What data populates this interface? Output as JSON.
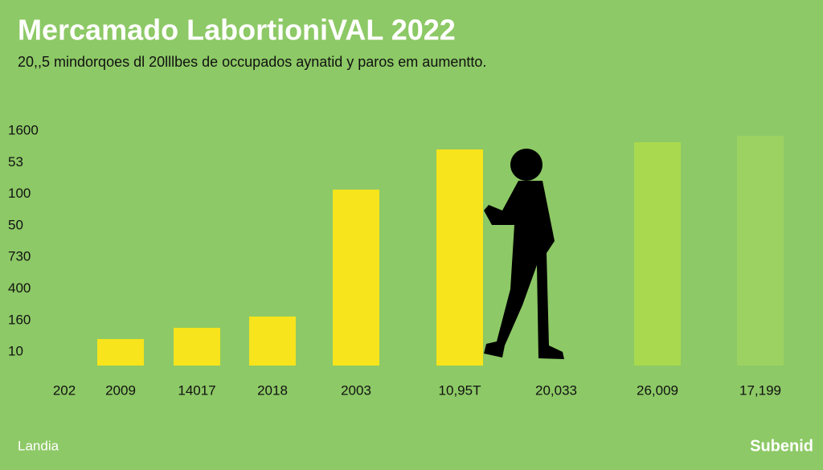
{
  "chart_data": {
    "type": "bar",
    "title": "Mercamado LabortioniVAL 2022",
    "subtitle": "20,,5 mindorqoes dl  20lllbes de occupados aynatid y paros em aumentto.",
    "y_axis_labels": [
      "1600",
      "53",
      "100",
      "50",
      "730",
      "400",
      "160",
      "10"
    ],
    "categories": [
      "202",
      "2009",
      "14017",
      "2018",
      "2003",
      "10,95T",
      "20,033",
      "26,009",
      "17,199"
    ],
    "values": [
      null,
      33,
      47,
      61,
      219,
      269,
      null,
      278,
      286
    ],
    "colors": [
      "#f7e41c",
      "#f7e41c",
      "#f7e41c",
      "#f7e41c",
      "#f7e41c",
      "#f7e41c",
      "#f7e41c",
      "#a9d94e",
      "#9bd261"
    ],
    "ylim": [
      0,
      300
    ],
    "source": "Landia",
    "brand": "Subenid"
  }
}
